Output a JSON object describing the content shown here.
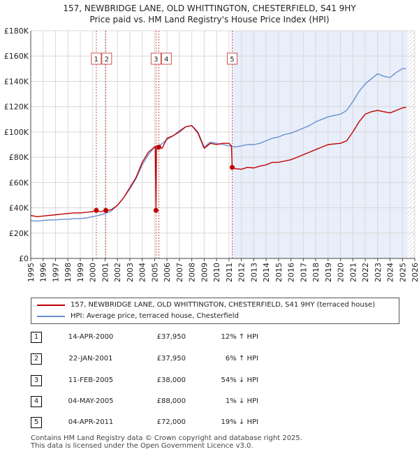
{
  "title_line1": "157, NEWBRIDGE LANE, OLD WHITTINGTON, CHESTERFIELD, S41 9HY",
  "title_line2": "Price paid vs. HM Land Registry's House Price Index (HPI)",
  "colors": {
    "property": "#c00000",
    "hpi": "#6a8fcf",
    "shade": "#e8eefa",
    "marker_line": "#d05050"
  },
  "legend": {
    "property_label": "157, NEWBRIDGE LANE, OLD WHITTINGTON, CHESTERFIELD, S41 9HY (terraced house)",
    "hpi_label": "HPI: Average price, terraced house, Chesterfield"
  },
  "transactions": [
    {
      "num": "1",
      "date": "14-APR-2000",
      "price": "£37,950",
      "hpi": "12% ↑ HPI"
    },
    {
      "num": "2",
      "date": "22-JAN-2001",
      "price": "£37,950",
      "hpi": "6% ↑ HPI"
    },
    {
      "num": "3",
      "date": "11-FEB-2005",
      "price": "£38,000",
      "hpi": "54% ↓ HPI"
    },
    {
      "num": "4",
      "date": "04-MAY-2005",
      "price": "£88,000",
      "hpi": "1% ↓ HPI"
    },
    {
      "num": "5",
      "date": "04-APR-2011",
      "price": "£72,000",
      "hpi": "19% ↓ HPI"
    }
  ],
  "footer": {
    "line1": "Contains HM Land Registry data © Crown copyright and database right 2025.",
    "line2": "This data is licensed under the Open Government Licence v3.0."
  },
  "chart_data": {
    "type": "line",
    "title": "157, NEWBRIDGE LANE, OLD WHITTINGTON, CHESTERFIELD, S41 9HY",
    "subtitle": "Price paid vs. HM Land Registry's House Price Index (HPI)",
    "xlabel": "",
    "ylabel": "",
    "xlim": [
      1995,
      2026
    ],
    "ylim": [
      0,
      180000
    ],
    "x_ticks": [
      "1995",
      "1996",
      "1997",
      "1998",
      "1999",
      "2000",
      "2001",
      "2002",
      "2003",
      "2004",
      "2005",
      "2006",
      "2007",
      "2008",
      "2009",
      "2010",
      "2011",
      "2012",
      "2013",
      "2014",
      "2015",
      "2016",
      "2017",
      "2018",
      "2019",
      "2020",
      "2021",
      "2022",
      "2023",
      "2024",
      "2025",
      "2026"
    ],
    "y_ticks": [
      {
        "value": 0,
        "label": "£0"
      },
      {
        "value": 20000,
        "label": "£20K"
      },
      {
        "value": 40000,
        "label": "£40K"
      },
      {
        "value": 60000,
        "label": "£60K"
      },
      {
        "value": 80000,
        "label": "£80K"
      },
      {
        "value": 100000,
        "label": "£100K"
      },
      {
        "value": 120000,
        "label": "£120K"
      },
      {
        "value": 140000,
        "label": "£140K"
      },
      {
        "value": 160000,
        "label": "£160K"
      },
      {
        "value": 180000,
        "label": "£180K"
      }
    ],
    "grid": true,
    "shaded_region": [
      2011.26,
      2025.4
    ],
    "hatched_region": [
      2025.4,
      2026
    ],
    "markers": [
      {
        "label": "1",
        "x": 2000.29,
        "y": 37950
      },
      {
        "label": "2",
        "x": 2001.06,
        "y": 37950
      },
      {
        "label": "3",
        "x": 2005.11,
        "y": 38000
      },
      {
        "label": "4",
        "x": 2005.34,
        "y": 88000
      },
      {
        "label": "5",
        "x": 2011.26,
        "y": 72000
      }
    ],
    "series": [
      {
        "name": "157, NEWBRIDGE LANE, OLD WHITTINGTON, CHESTERFIELD, S41 9HY (terraced house)",
        "x": [
          1995.0,
          1995.5,
          1996.0,
          1996.5,
          1997.0,
          1997.5,
          1998.0,
          1998.5,
          1999.0,
          1999.5,
          2000.0,
          2000.29,
          2000.6,
          2001.06,
          2001.5,
          2002.0,
          2002.5,
          2003.0,
          2003.5,
          2004.0,
          2004.5,
          2005.05,
          2005.11,
          2005.15,
          2005.3,
          2005.34,
          2005.6,
          2006.0,
          2006.5,
          2007.0,
          2007.5,
          2008.0,
          2008.5,
          2009.0,
          2009.5,
          2010.0,
          2010.5,
          2011.0,
          2011.2,
          2011.26,
          2011.5,
          2012.0,
          2012.5,
          2013.0,
          2013.5,
          2014.0,
          2014.5,
          2015.0,
          2015.5,
          2016.0,
          2016.5,
          2017.0,
          2017.5,
          2018.0,
          2018.5,
          2019.0,
          2019.5,
          2020.0,
          2020.5,
          2021.0,
          2021.5,
          2022.0,
          2022.5,
          2023.0,
          2023.5,
          2024.0,
          2024.5,
          2025.0,
          2025.3
        ],
        "y": [
          34000,
          33000,
          33500,
          34000,
          34500,
          35000,
          35500,
          36000,
          36000,
          36500,
          37000,
          37950,
          37000,
          37950,
          38500,
          42000,
          48000,
          56000,
          64000,
          76000,
          84000,
          88500,
          38000,
          89000,
          86000,
          88000,
          87000,
          95000,
          97000,
          100000,
          104000,
          105000,
          99000,
          87000,
          91000,
          90000,
          91000,
          91000,
          89000,
          72000,
          71000,
          70500,
          72000,
          71500,
          73000,
          74000,
          76000,
          76000,
          77000,
          78000,
          80000,
          82000,
          84000,
          86000,
          88000,
          90000,
          90500,
          91000,
          93000,
          100000,
          108000,
          114000,
          116000,
          117000,
          116000,
          115000,
          117000,
          119000,
          119500
        ]
      },
      {
        "name": "HPI: Average price, terraced house, Chesterfield",
        "x": [
          1995.0,
          1995.5,
          1996.0,
          1996.5,
          1997.0,
          1997.5,
          1998.0,
          1998.5,
          1999.0,
          1999.5,
          2000.0,
          2000.5,
          2001.0,
          2001.5,
          2002.0,
          2002.5,
          2003.0,
          2003.5,
          2004.0,
          2004.5,
          2005.0,
          2005.5,
          2006.0,
          2006.5,
          2007.0,
          2007.5,
          2008.0,
          2008.5,
          2009.0,
          2009.5,
          2010.0,
          2010.5,
          2011.0,
          2011.5,
          2012.0,
          2012.5,
          2013.0,
          2013.5,
          2014.0,
          2014.5,
          2015.0,
          2015.5,
          2016.0,
          2016.5,
          2017.0,
          2017.5,
          2018.0,
          2018.5,
          2019.0,
          2019.5,
          2020.0,
          2020.5,
          2021.0,
          2021.5,
          2022.0,
          2022.5,
          2023.0,
          2023.5,
          2024.0,
          2024.5,
          2025.0,
          2025.3
        ],
        "y": [
          30000,
          29500,
          30000,
          30500,
          30500,
          31000,
          31000,
          31500,
          31500,
          32000,
          33000,
          34000,
          35500,
          37500,
          42000,
          48000,
          55000,
          63000,
          74000,
          82000,
          88000,
          90000,
          94000,
          97000,
          101000,
          104000,
          105000,
          100000,
          88000,
          92000,
          91000,
          90000,
          89000,
          88000,
          89000,
          90000,
          90000,
          91000,
          93000,
          95000,
          96000,
          98000,
          99000,
          101000,
          103000,
          105000,
          108000,
          110000,
          112000,
          113000,
          114000,
          117000,
          124000,
          132000,
          138000,
          142000,
          146000,
          144000,
          143000,
          147000,
          150000,
          150000
        ]
      }
    ]
  }
}
